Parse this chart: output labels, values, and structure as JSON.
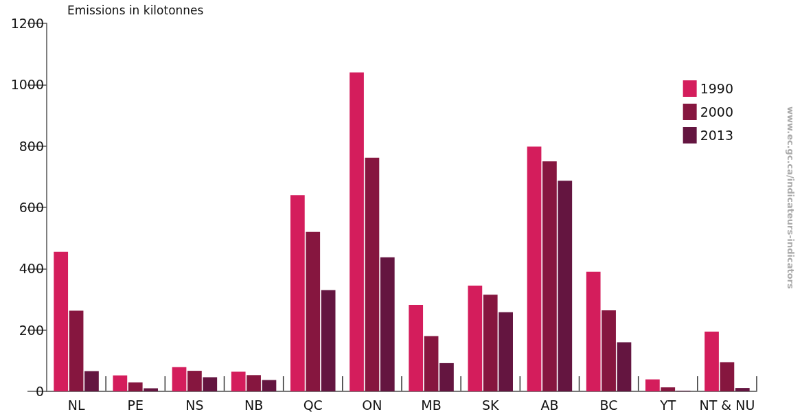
{
  "chart_data": {
    "type": "bar",
    "ylabel": "Emissions in kilotonnes",
    "categories": [
      "NL",
      "PE",
      "NS",
      "NB",
      "QC",
      "ON",
      "MB",
      "SK",
      "AB",
      "BC",
      "YT",
      "NT & NU"
    ],
    "series": [
      {
        "name": "1990",
        "color": "#d41d5c",
        "values": [
          455,
          52,
          79,
          64,
          640,
          1040,
          282,
          345,
          798,
          390,
          39,
          195
        ]
      },
      {
        "name": "2000",
        "color": "#86163f",
        "values": [
          263,
          29,
          67,
          53,
          520,
          762,
          180,
          315,
          750,
          264,
          13,
          95
        ]
      },
      {
        "name": "2013",
        "color": "#641540",
        "values": [
          66,
          10,
          46,
          37,
          330,
          437,
          92,
          258,
          687,
          160,
          2,
          11
        ]
      }
    ],
    "ylim": [
      0,
      1200
    ],
    "yticks": [
      0,
      200,
      400,
      600,
      800,
      1000,
      1200
    ],
    "grid": false,
    "legend": "top right",
    "annotations": [
      "www.ec.gc.ca/indicateurs-indicators"
    ]
  }
}
